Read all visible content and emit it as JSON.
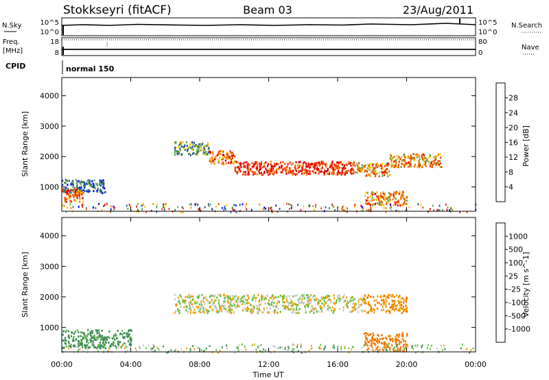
{
  "header": {
    "station": "Stokkseyri (fitACF)",
    "beam": "Beam 03",
    "date": "23/Aug/2011"
  },
  "noise_panel": {
    "left_label": "N.Sky",
    "right_label": "N.Search",
    "left_ticks": [
      "10^5",
      "10^0"
    ],
    "right_ticks": [
      "10^5",
      "10^0"
    ]
  },
  "freq_panel": {
    "left_label_top": "Freq.",
    "left_label_bottom": "[MHz]",
    "right_label": "Nave",
    "left_ticks": [
      "18",
      "8"
    ],
    "right_ticks": [
      "80",
      "0"
    ]
  },
  "cpid": {
    "label": "CPID",
    "value": "normal 150"
  },
  "colors": {
    "power": [
      "#0000ff",
      "#1d4ea0",
      "#3a7a52",
      "#5fa860",
      "#f2c200",
      "#f07800",
      "#f04000",
      "#e00000"
    ],
    "velocity": [
      "#e00000",
      "#f04000",
      "#f07800",
      "#f0a000",
      "#c8c8c8",
      "#c8c8c8",
      "#60c040",
      "#3a8a50",
      "#1d5aa0",
      "#1030c0"
    ]
  },
  "chart_data": [
    {
      "type": "heatmap",
      "quantity": "power",
      "ylabel": "Slant Range [km]",
      "yticks": [
        1000,
        2000,
        3000,
        4000
      ],
      "ylim": [
        200,
        4600
      ],
      "xlim": [
        0,
        24
      ],
      "colorbar": {
        "label": "Power [dB]",
        "ticks": [
          "4",
          "8",
          "12",
          "16",
          "20",
          "24",
          "28"
        ],
        "range": [
          0,
          30
        ]
      },
      "features": [
        {
          "t_start": 0,
          "t_end": 2.5,
          "range_km": 1050,
          "value_db": 8
        },
        {
          "t_start": 0,
          "t_end": 1.2,
          "range_km": 750,
          "value_db": 24
        },
        {
          "t_start": 6.5,
          "t_end": 8.5,
          "range_km": 2300,
          "value_db": 12
        },
        {
          "t_start": 8.5,
          "t_end": 10,
          "range_km": 2000,
          "value_db": 22
        },
        {
          "t_start": 10,
          "t_end": 17,
          "range_km": 1650,
          "value_db": 26
        },
        {
          "t_start": 17,
          "t_end": 19,
          "range_km": 1600,
          "value_db": 20
        },
        {
          "t_start": 19,
          "t_end": 22,
          "range_km": 1900,
          "value_db": 20
        },
        {
          "t_start": 17.5,
          "t_end": 20,
          "range_km": 650,
          "value_db": 20
        }
      ]
    },
    {
      "type": "heatmap",
      "quantity": "velocity",
      "ylabel": "Slant Range [km]",
      "xlabel": "Time UT",
      "yticks": [
        1000,
        2000,
        3000,
        4000
      ],
      "ylim": [
        200,
        4600
      ],
      "xlim": [
        0,
        24
      ],
      "xticks": [
        "00:00",
        "04:00",
        "08:00",
        "12:00",
        "16:00",
        "20:00",
        "00:00"
      ],
      "colorbar": {
        "label": "Velocity [m s^-1]",
        "ticks": [
          "1000",
          "500",
          "100",
          "25",
          "-25",
          "-100",
          "-500",
          "-1000"
        ]
      },
      "features": [
        {
          "t_start": 0,
          "t_end": 4,
          "range_km": 650,
          "value_ms": 100
        },
        {
          "t_start": 6.5,
          "t_end": 17.5,
          "range_km": 1800,
          "value_ms": 0
        },
        {
          "t_start": 17.5,
          "t_end": 20,
          "range_km": 550,
          "value_ms": -300
        },
        {
          "t_start": 17.5,
          "t_end": 20,
          "range_km": 1800,
          "value_ms": -200
        }
      ]
    }
  ]
}
